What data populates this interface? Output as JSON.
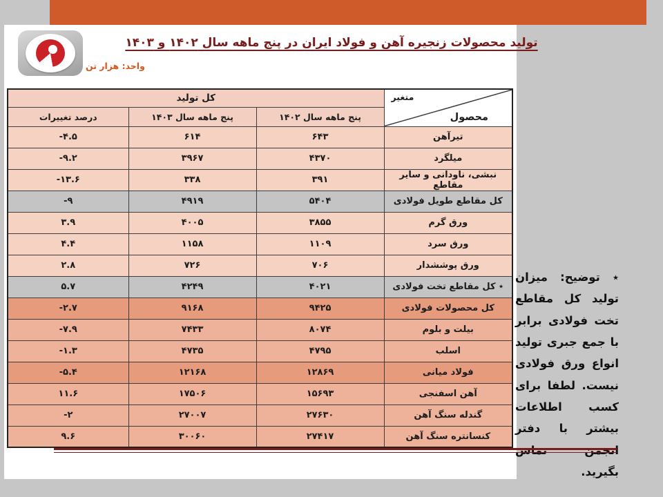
{
  "slide": {
    "title": "تولید محصولات زنجیره آهن و فولاد ایران در پنج ماهه سال ۱۴۰۲ و ۱۴۰۳",
    "unit_label": "واحد: هزار تن"
  },
  "table": {
    "header": {
      "total_production": "کل تولید",
      "variable": "متغیر",
      "product": "محصول",
      "col_1402": "پنج ماهه سال ۱۴۰۲",
      "col_1403": "پنج ماهه سال ۱۴۰۳",
      "col_change": "درصد تغییرات"
    },
    "rows": [
      {
        "product": "تیرآهن",
        "y1402": "۶۴۳",
        "y1403": "۶۱۴",
        "change": "-۴.۵",
        "tone": "light"
      },
      {
        "product": "میلگرد",
        "y1402": "۴۳۷۰",
        "y1403": "۳۹۶۷",
        "change": "-۹.۲",
        "tone": "light"
      },
      {
        "product": "نبشی، ناودانی و سایر مقاطع",
        "y1402": "۳۹۱",
        "y1403": "۳۳۸",
        "change": "-۱۳.۶",
        "tone": "light"
      },
      {
        "product": "کل مقاطع طویل فولادی",
        "y1402": "۵۴۰۴",
        "y1403": "۴۹۱۹",
        "change": "-۹",
        "tone": "gray"
      },
      {
        "product": "ورق گرم",
        "y1402": "۳۸۵۵",
        "y1403": "۴۰۰۵",
        "change": "۳.۹",
        "tone": "light"
      },
      {
        "product": "ورق سرد",
        "y1402": "۱۱۰۹",
        "y1403": "۱۱۵۸",
        "change": "۴.۴",
        "tone": "light"
      },
      {
        "product": "ورق پوششدار",
        "y1402": "۷۰۶",
        "y1403": "۷۲۶",
        "change": "۲.۸",
        "tone": "light"
      },
      {
        "product": "٭ کل مقاطع تخت فولادی",
        "y1402": "۴۰۲۱",
        "y1403": "۴۲۴۹",
        "change": "۵.۷",
        "tone": "gray"
      },
      {
        "product": "کل محصولات فولادی",
        "y1402": "۹۴۲۵",
        "y1403": "۹۱۶۸",
        "change": "-۲.۷",
        "tone": "dark"
      },
      {
        "product": "بیلت و بلوم",
        "y1402": "۸۰۷۴",
        "y1403": "۷۴۳۳",
        "change": "-۷.۹",
        "tone": "medium"
      },
      {
        "product": "اسلب",
        "y1402": "۴۷۹۵",
        "y1403": "۴۷۳۵",
        "change": "-۱.۳",
        "tone": "medium"
      },
      {
        "product": "فولاد میانی",
        "y1402": "۱۲۸۶۹",
        "y1403": "۱۲۱۶۸",
        "change": "-۵.۴",
        "tone": "dark"
      },
      {
        "product": "آهن اسفنجی",
        "y1402": "۱۵۶۹۳",
        "y1403": "۱۷۵۰۶",
        "change": "۱۱.۶",
        "tone": "medium"
      },
      {
        "product": "گندله سنگ آهن",
        "y1402": "۲۷۶۳۰",
        "y1403": "۲۷۰۰۷",
        "change": "-۲",
        "tone": "medium"
      },
      {
        "product": "کنسانتره سنگ آهن",
        "y1402": "۲۷۴۱۷",
        "y1403": "۳۰۰۶۰",
        "change": "۹.۶",
        "tone": "medium"
      }
    ]
  },
  "note": {
    "label": "٭ توضیح:",
    "text": " میزان تولید کل مقاطع تخت فولادی برابر با جمع جبری تولید انواع ورق فولادی نیست. لطفا برای کسب اطلاعات بیشتر با دفتر انجمن تماس بگیرید."
  },
  "colors": {
    "background": "#c6c6c6",
    "top_bar": "#cf5b2b",
    "title": "#7a1b1b",
    "unit_label": "#d4581e",
    "header_pink": "#f2cfc0",
    "row_light": "#f5d2c2",
    "row_gray": "#c4c4c4",
    "row_medium": "#eeb19a",
    "row_dark": "#e69b7d",
    "logo_red": "#cc2027",
    "divider": "#7a1b1b"
  }
}
